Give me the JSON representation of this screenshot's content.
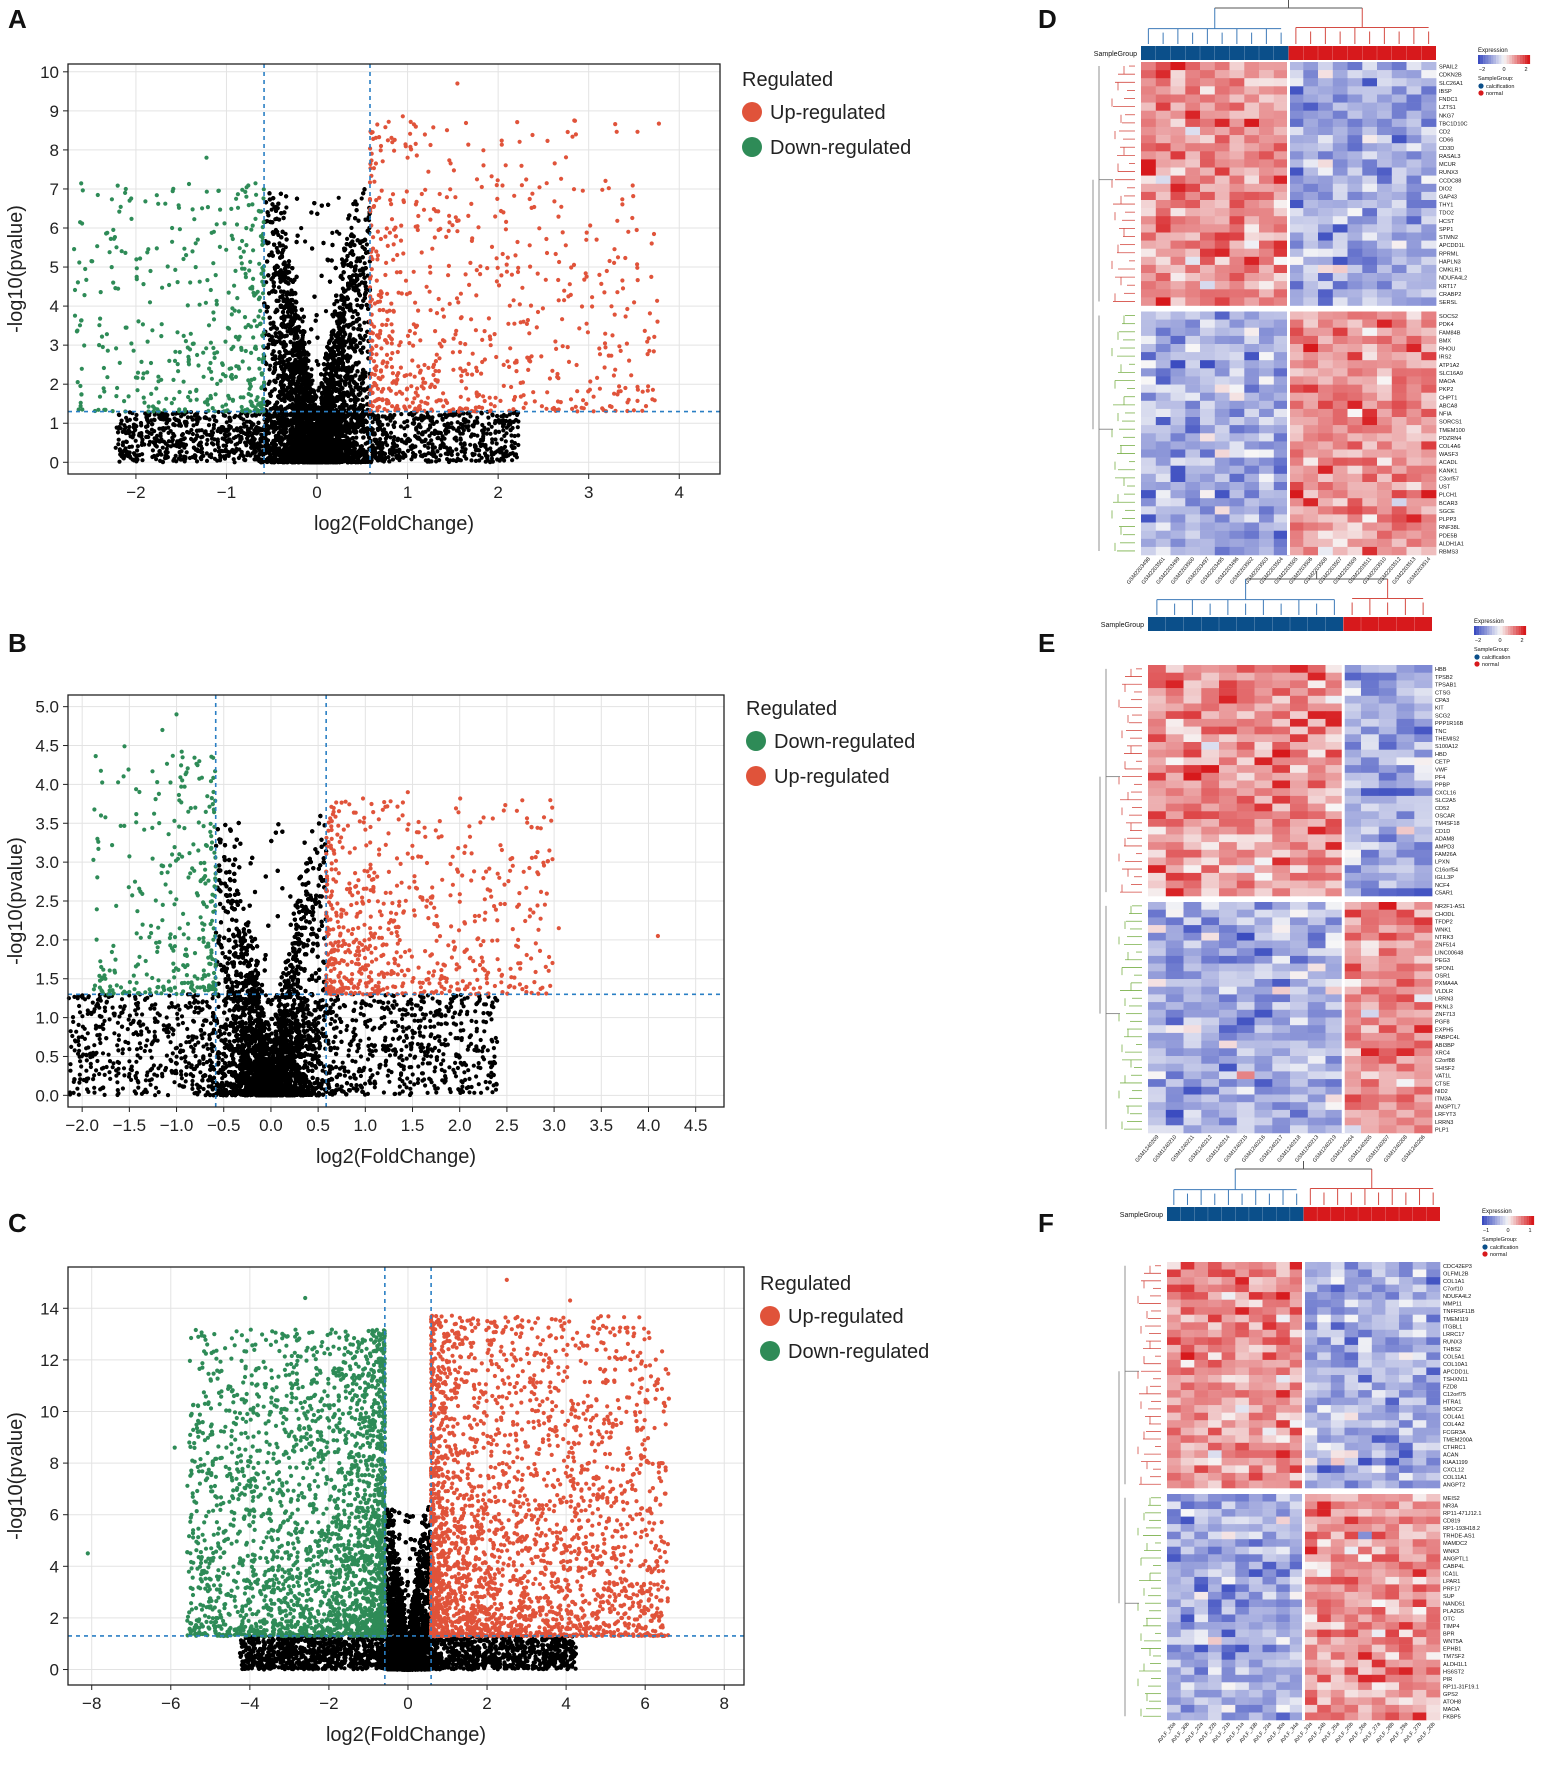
{
  "panel_letters": [
    "A",
    "B",
    "C",
    "D",
    "E",
    "F"
  ],
  "colors": {
    "up": "#e0533a",
    "down": "#2e8b57",
    "ns": "#000000",
    "threshold": "#2a7fc4",
    "grid": "#e3e3e3",
    "heat_low": "#3b4cc0",
    "heat_mid": "#f7f7f7",
    "heat_high": "#d7191c",
    "group_calcification": "#0b4f8a",
    "group_normal": "#d7191c"
  },
  "chart_data": [
    {
      "panel": "A",
      "type": "scatter",
      "xlabel": "log2(FoldChange)",
      "ylabel": "-log10(pvalue)",
      "xlim": [
        -2.75,
        4.45
      ],
      "ylim": [
        -0.3,
        10.2
      ],
      "xticks": [
        -2,
        -1,
        0,
        1,
        2,
        3,
        4
      ],
      "yticks": [
        0,
        1,
        2,
        3,
        4,
        5,
        6,
        7,
        8,
        9,
        10
      ],
      "xtick_labels": [
        "−2",
        "−1",
        "0",
        "1",
        "2",
        "3",
        "4"
      ],
      "ytick_labels": [
        "0",
        "1",
        "2",
        "3",
        "4",
        "5",
        "6",
        "7",
        "8",
        "9",
        "10"
      ],
      "thresholds": {
        "x": [
          -0.585,
          0.585
        ],
        "y": 1.3
      },
      "grid": true,
      "legend": {
        "title": "Regulated",
        "position": "right",
        "entries": [
          "Up-regulated",
          "Down-regulated"
        ]
      },
      "series": [
        {
          "name": "Up-regulated",
          "density": 700,
          "xspread": 3.2,
          "ymax": 9.7
        },
        {
          "name": "Down-regulated",
          "density": 420,
          "xspread": 2.1,
          "ymax": 7.8
        },
        {
          "name": "Not significant",
          "density": 9000,
          "ymax": 7.0
        }
      ],
      "outliers": [
        [
          3.53,
          5.95
        ],
        [
          3.2,
          4.9
        ],
        [
          1.55,
          9.7
        ],
        [
          1.82,
          7.05
        ],
        [
          1.0,
          7.8
        ],
        [
          -2.56,
          4.95
        ],
        [
          -1.22,
          7.8
        ],
        [
          -1.6,
          6.0
        ],
        [
          2.28,
          3.6
        ],
        [
          2.18,
          3.55
        ],
        [
          1.25,
          0.9
        ]
      ]
    },
    {
      "panel": "B",
      "type": "scatter",
      "xlabel": "log2(FoldChange)",
      "ylabel": "-log10(pvalue)",
      "xlim": [
        -2.15,
        4.8
      ],
      "ylim": [
        -0.15,
        5.15
      ],
      "xticks": [
        -2.0,
        -1.5,
        -1.0,
        -0.5,
        0.0,
        0.5,
        1.0,
        1.5,
        2.0,
        2.5,
        3.0,
        3.5,
        4.0,
        4.5
      ],
      "yticks": [
        0.0,
        0.5,
        1.0,
        1.5,
        2.0,
        2.5,
        3.0,
        3.5,
        4.0,
        4.5,
        5.0
      ],
      "xtick_labels": [
        "−2.0",
        "−1.5",
        "−1.0",
        "−0.5",
        "0.0",
        "0.5",
        "1.0",
        "1.5",
        "2.0",
        "2.5",
        "3.0",
        "3.5",
        "4.0",
        "4.5"
      ],
      "ytick_labels": [
        "0.0",
        "0.5",
        "1.0",
        "1.5",
        "2.0",
        "2.5",
        "3.0",
        "3.5",
        "4.0",
        "4.5",
        "5.0"
      ],
      "thresholds": {
        "x": [
          -0.585,
          0.585
        ],
        "y": 1.3
      },
      "grid": true,
      "legend": {
        "title": "Regulated",
        "position": "right",
        "entries": [
          "Down-regulated",
          "Up-regulated"
        ]
      },
      "series": [
        {
          "name": "Up-regulated",
          "density": 650,
          "xspread": 2.4,
          "ymax": 4.1
        },
        {
          "name": "Down-regulated",
          "density": 320,
          "xspread": 1.3,
          "ymax": 4.9
        },
        {
          "name": "Not significant",
          "density": 9000,
          "ymax": 3.6
        }
      ],
      "outliers": [
        [
          4.1,
          2.05
        ],
        [
          3.05,
          2.15
        ],
        [
          2.95,
          3.15
        ],
        [
          -1.0,
          4.9
        ],
        [
          -1.15,
          4.7
        ],
        [
          -1.8,
          3.6
        ],
        [
          1.45,
          3.9
        ],
        [
          -1.85,
          1.15
        ]
      ]
    },
    {
      "panel": "C",
      "type": "scatter",
      "xlabel": "log2(FoldChange)",
      "ylabel": "-log10(pvalue)",
      "xlim": [
        -8.6,
        8.5
      ],
      "ylim": [
        -0.6,
        15.6
      ],
      "xticks": [
        -8,
        -6,
        -4,
        -2,
        0,
        2,
        4,
        6,
        8
      ],
      "yticks": [
        0,
        2,
        4,
        6,
        8,
        10,
        12,
        14
      ],
      "xtick_labels": [
        "−8",
        "−6",
        "−4",
        "−2",
        "0",
        "2",
        "4",
        "6",
        "8"
      ],
      "ytick_labels": [
        "0",
        "2",
        "4",
        "6",
        "8",
        "10",
        "12",
        "14"
      ],
      "thresholds": {
        "x": [
          -0.585,
          0.585
        ],
        "y": 1.3
      },
      "grid": true,
      "legend": {
        "title": "Regulated",
        "position": "right",
        "entries": [
          "Up-regulated",
          "Down-regulated"
        ]
      },
      "series": [
        {
          "name": "Up-regulated",
          "density": 2600,
          "xspread": 6.0,
          "ymax": 15.1
        },
        {
          "name": "Down-regulated",
          "density": 2600,
          "xspread": 5.0,
          "ymax": 14.5
        },
        {
          "name": "Not significant",
          "density": 12000,
          "ymax": 6.3
        }
      ],
      "outliers": [
        [
          -8.1,
          4.5
        ],
        [
          6.6,
          10.5
        ],
        [
          6.4,
          8.0
        ],
        [
          -4.9,
          13.0
        ],
        [
          -5.2,
          11.7
        ],
        [
          2.5,
          15.1
        ],
        [
          4.1,
          14.3
        ],
        [
          -2.6,
          14.4
        ],
        [
          -5.9,
          8.6
        ]
      ]
    }
  ],
  "heatmaps": [
    {
      "panel": "D",
      "sample_group_label": "SampleGroup",
      "legend_title": "Expression",
      "legend_ticks": [
        "−2",
        "0",
        "2"
      ],
      "group_legend_title": "SampleGroup",
      "groups": [
        "calcification",
        "normal"
      ],
      "n_calc": 10,
      "n_norm": 10,
      "upper_genes": [
        "SPAIL2",
        "CDKN2B",
        "SLC26A1",
        "IBSP",
        "FNDC1",
        "LZTS1",
        "NKG7",
        "TBC1D10C",
        "CD2",
        "CD66",
        "CD3D",
        "RASAL3",
        "MCUR",
        "RUNX3",
        "CCDC88",
        "DIO2",
        "GAP43",
        "THY1",
        "TDO2",
        "HCST",
        "SPP1",
        "STMN2",
        "APCDD1L",
        "RPRML",
        "HAPLN3",
        "CMKLR1",
        "NDUFA4L2",
        "KRT17",
        "CRABP2",
        "SERSL"
      ],
      "lower_genes": [
        "SOCS2",
        "PDK4",
        "FAM84B",
        "BMX",
        "RHOU",
        "IRS2",
        "ATP1A2",
        "SLC16A9",
        "MAOA",
        "PKP2",
        "CHPT1",
        "ABCA8",
        "NFIA",
        "SORCS1",
        "TMEM100",
        "PDZRN4",
        "COL4A6",
        "WASF3",
        "ACADL",
        "KANK1",
        "C3orf57",
        "UST",
        "PLCH1",
        "BCAR3",
        "SGCE",
        "PLPP3",
        "RNF38L",
        "PDE5B",
        "ALDH1A1",
        "RBMS3"
      ],
      "samples": [
        "GSM2203498",
        "GSM2203501",
        "GSM2203499",
        "GSM2203500",
        "GSM2203497",
        "GSM2203495",
        "GSM2203496",
        "GSM2203502",
        "GSM2203503",
        "GSM2203504",
        "GSM2203505",
        "GSM2203506",
        "GSM2203508",
        "GSM2203507",
        "GSM2203509",
        "GSM2203511",
        "GSM2203510",
        "GSM2203512",
        "GSM2203513",
        "GSM2203514"
      ]
    },
    {
      "panel": "E",
      "sample_group_label": "SampleGroup",
      "legend_title": "Expression",
      "legend_ticks": [
        "−2",
        "0",
        "2"
      ],
      "group_legend_title": "SampleGroup",
      "groups": [
        "calcification",
        "normal"
      ],
      "n_calc": 11,
      "n_norm": 5,
      "upper_genes": [
        "HBB",
        "TPSB2",
        "TPSAB1",
        "CTSG",
        "CPA3",
        "KIT",
        "SCG2",
        "PPP1R16B",
        "TNC",
        "THEMIS2",
        "S100A12",
        "HBD",
        "CETP",
        "VWF",
        "PF4",
        "PPBP",
        "CXCL16",
        "SLC2A5",
        "CD52",
        "OSCAR",
        "TM4SF18",
        "CD1D",
        "ADAM8",
        "AMPD3",
        "FAM26A",
        "LPXN",
        "C16orf54",
        "IGLL3P",
        "NCF4",
        "C5AR1"
      ],
      "lower_genes": [
        "NR2F1-AS1",
        "CHODL",
        "TFDP2",
        "WNK1",
        "NTRK3",
        "ZNF514",
        "LINC00648",
        "PEG3",
        "SPON1",
        "OSR1",
        "PXMA4A",
        "VLDLR",
        "LRRN3",
        "PKNL3",
        "ZNF713",
        "PGF8",
        "EXPH5",
        "PABPC4L",
        "ABI3BP",
        "XRC4",
        "C2orf88",
        "SHISF2",
        "VAT1L",
        "CTSE",
        "NID2",
        "ITM3A",
        "ANGPTL7",
        "LRFYT3",
        "LRRN3",
        "PLP1"
      ],
      "samples": [
        "GSM1240209",
        "GSM1240210",
        "GSM1240211",
        "GSM1240212",
        "GSM1240214",
        "GSM1240215",
        "GSM1240216",
        "GSM1240217",
        "GSM1240218",
        "GSM1240213",
        "GSM1240219",
        "GSM1240204",
        "GSM1240205",
        "GSM1240207",
        "GSM1240208",
        "GSM1240206"
      ]
    },
    {
      "panel": "F",
      "sample_group_label": "SampleGroup",
      "legend_title": "Expression",
      "legend_ticks": [
        "−1",
        "0",
        "1"
      ],
      "group_legend_title": "SampleGroup",
      "groups": [
        "calcification",
        "normal"
      ],
      "n_calc": 10,
      "n_norm": 10,
      "upper_genes": [
        "CDC42EP3",
        "OLFML2B",
        "COL1A1",
        "C7orf10",
        "NDUFA4L2",
        "MMP11",
        "TNFRSF11B",
        "TMEM119",
        "ITGBL1",
        "LRRC17",
        "RUNX3",
        "THBS2",
        "COL5A1",
        "COL10A1",
        "APCDD1L",
        "TSHXN11",
        "FZD8",
        "C12orf75",
        "HTRA1",
        "SMOC2",
        "COL4A1",
        "COL4A2",
        "FCGR3A",
        "TMEM200A",
        "CTHRC1",
        "ACAN",
        "KIAA1199",
        "CXCL12",
        "COL11A1",
        "ANGPT2"
      ],
      "lower_genes": [
        "MEIS2",
        "NR3A",
        "RP11-471J12.1",
        "CD819",
        "RP1-193H18.2",
        "TRHDE-AS1",
        "MAMDC2",
        "WNK3",
        "ANGPTL1",
        "CABP4L",
        "ICA1L",
        "LPAR1",
        "PRF17",
        "SUP",
        "NAND51",
        "PLA2G5",
        "OTC",
        "TIMP4",
        "BPR",
        "WNT5A",
        "EPHB1",
        "TM7SF2",
        "ALDH1L1",
        "HS6ST2",
        "PIR",
        "RP11-31F19.1",
        "GPS2",
        "ATOH8",
        "MAOA",
        "FKBP5"
      ],
      "samples": [
        "AVLF_20a",
        "AVLF_30b",
        "AVLF_22a",
        "AVLF_22b",
        "AVLF_21b",
        "AVLF_21a",
        "AVLF_33b",
        "AVLF_23a",
        "AVLF_30a",
        "AVLF_34a",
        "AVLF_33a",
        "AVLF_24b",
        "AVLF_25a",
        "AVLF_25b",
        "AVLF_26a",
        "AVLF_27a",
        "AVLF_28b",
        "AVLF_29a",
        "AVLF_27b",
        "AVLF_20b"
      ]
    }
  ]
}
